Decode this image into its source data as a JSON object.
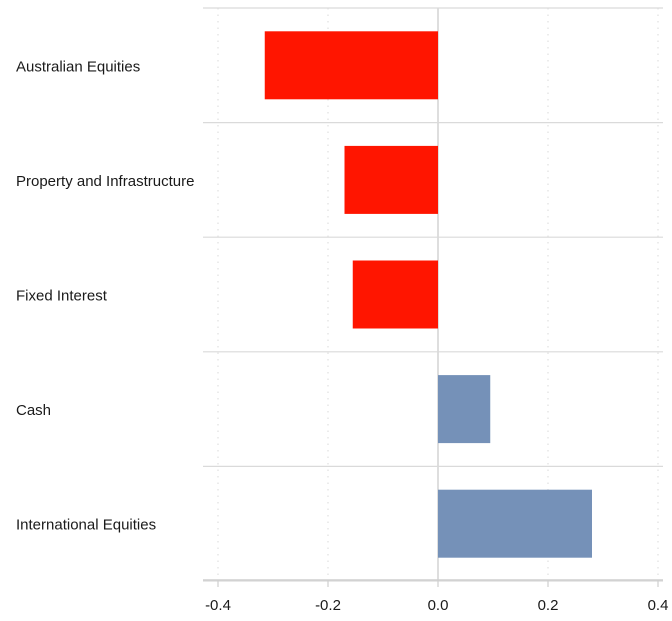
{
  "chart_data": {
    "type": "bar",
    "orientation": "horizontal",
    "categories": [
      "Australian Equities",
      "Property and Infrastructure",
      "Fixed Interest",
      "Cash",
      "International Equities"
    ],
    "values": [
      -0.315,
      -0.17,
      -0.155,
      0.095,
      0.28
    ],
    "xlim": [
      -0.4,
      0.4
    ],
    "xticks": [
      -0.4,
      -0.2,
      0.0,
      0.2,
      0.4
    ],
    "xtick_labels": [
      "-0.4",
      "-0.2",
      "0.0",
      "0.2",
      "0.4"
    ],
    "grid": "vertical dotted",
    "colors": {
      "negative": "#ff1500",
      "positive": "#7591b8"
    }
  }
}
